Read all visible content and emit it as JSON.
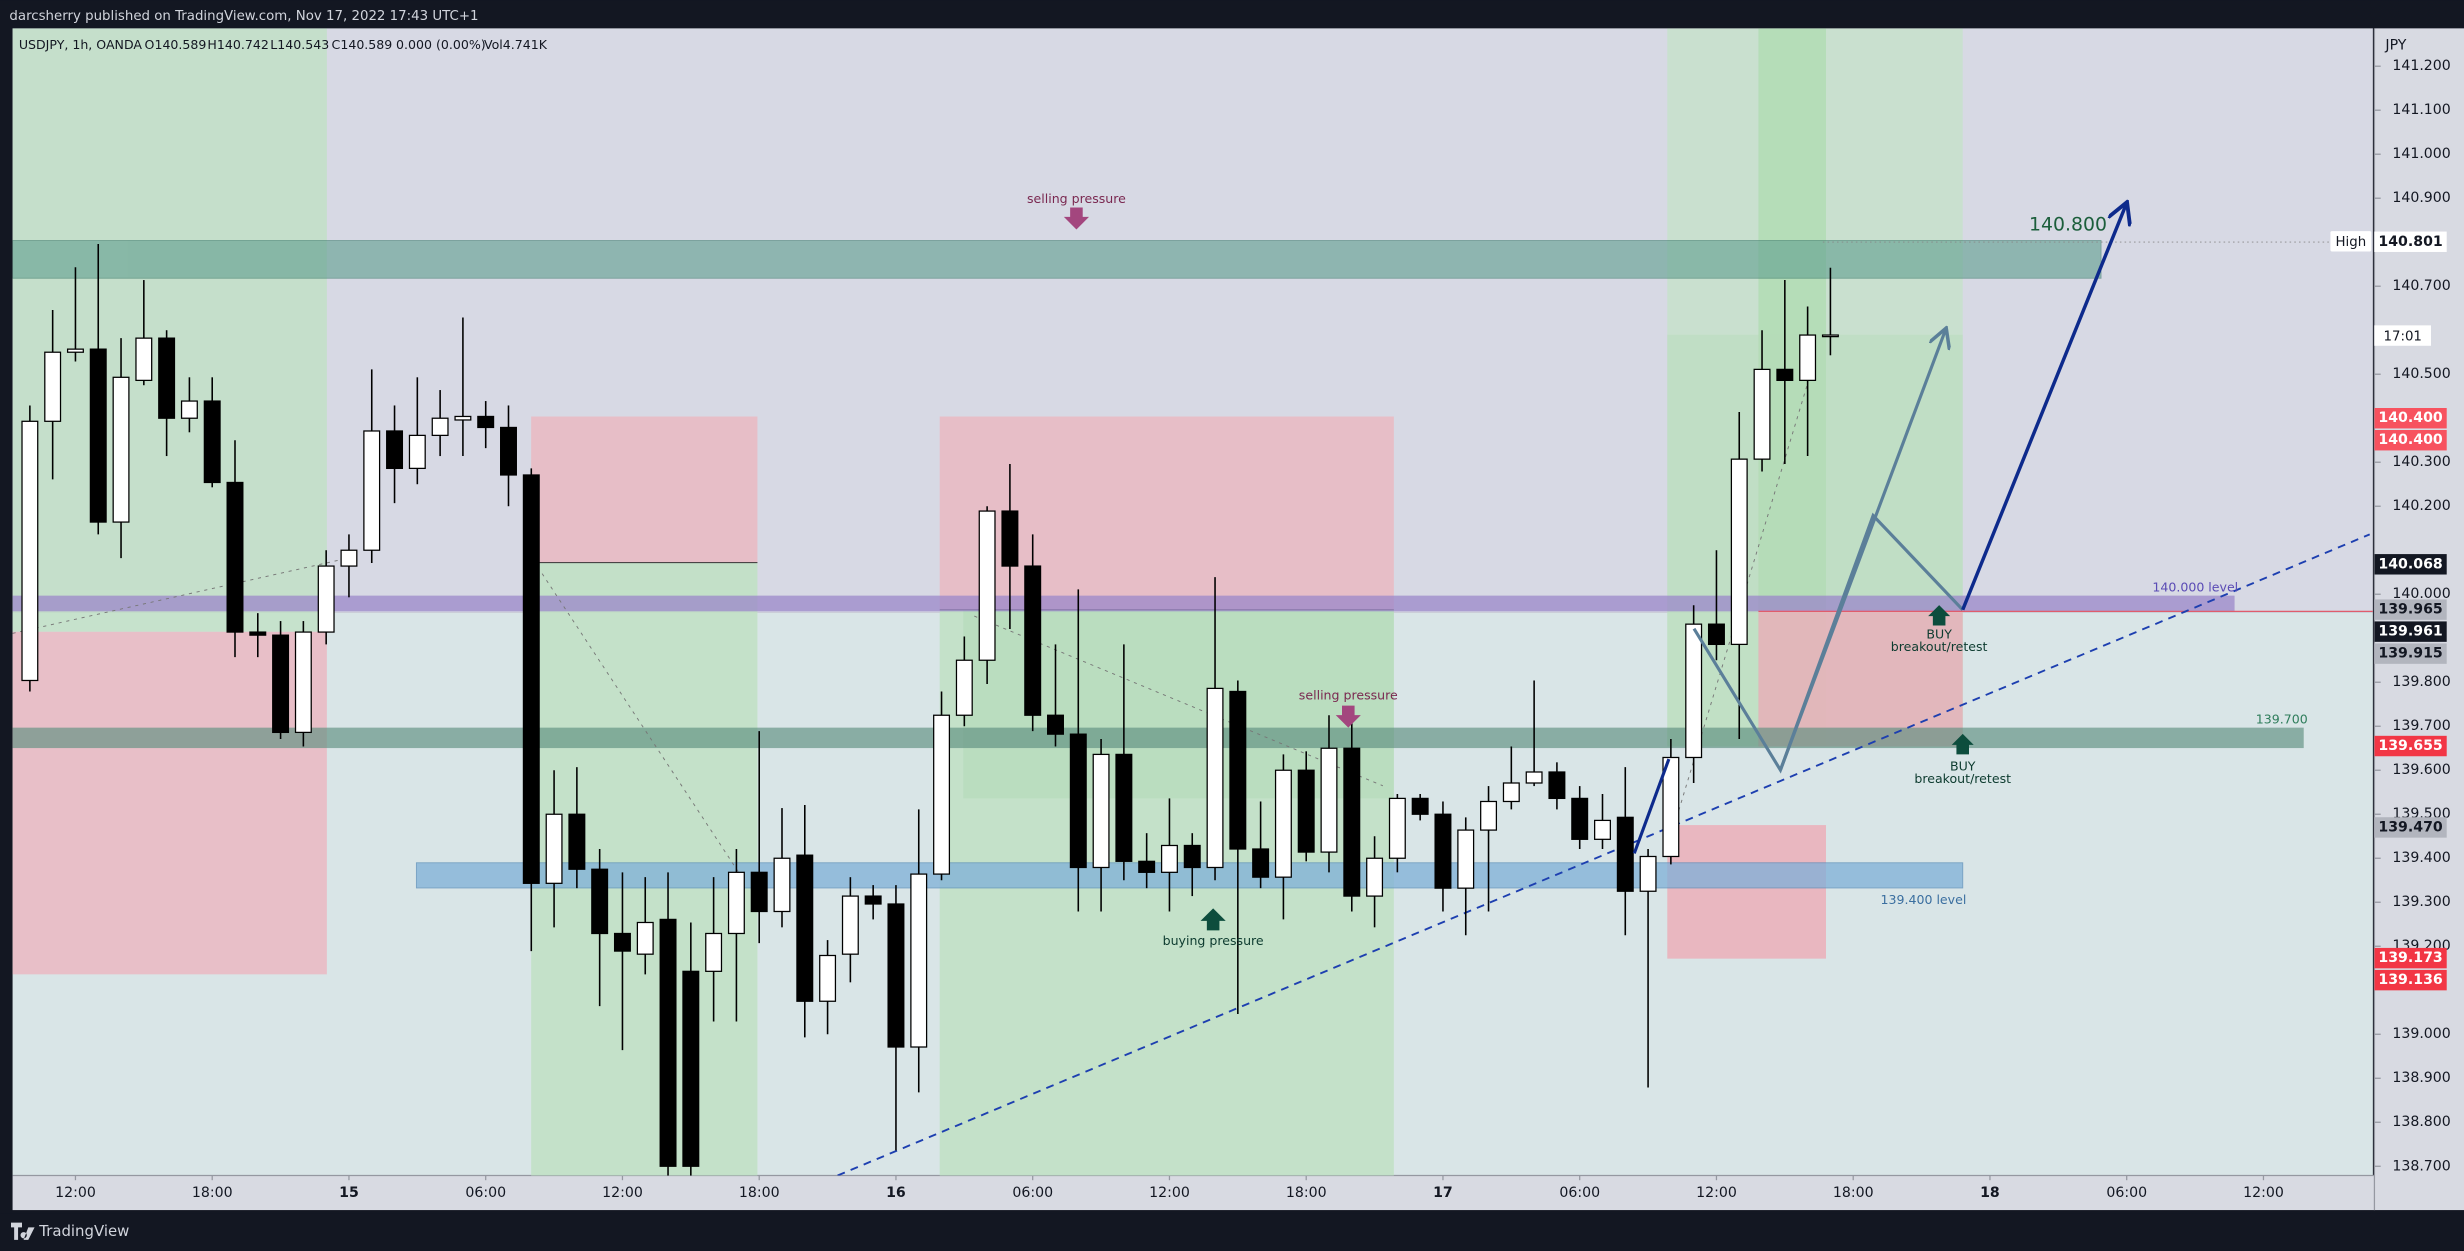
{
  "header": {
    "publisher": "darcsherry published on TradingView.com, Nov 17, 2022 17:43 UTC+1",
    "symbol": "USDJPY, 1h, OANDA",
    "ohlc": [
      "O140.589",
      "H140.742",
      "L140.543",
      "C140.589",
      "0.000 (0.00%)",
      "Vol4.741K"
    ]
  },
  "footer": "TradingView",
  "chart_data": {
    "type": "candlestick",
    "currency": "JPY",
    "up_color": "#ffffff",
    "down_color": "#000000",
    "x": [
      10,
      11,
      12,
      13,
      14,
      15,
      16,
      17,
      18,
      19,
      20,
      21,
      22,
      23,
      24,
      25,
      26,
      27,
      28,
      29,
      30,
      31,
      32,
      33,
      34,
      35,
      36,
      37,
      38,
      39,
      40,
      41,
      42,
      43,
      44,
      45,
      46,
      47,
      48,
      49,
      50,
      51,
      52,
      53,
      54,
      55,
      56,
      57,
      58,
      59,
      60,
      61,
      62,
      63,
      64,
      65,
      66,
      67,
      68,
      69,
      70,
      71,
      72,
      73,
      74,
      75,
      76,
      77,
      78,
      79,
      80,
      81,
      82,
      83,
      84,
      85,
      86,
      87,
      88,
      89
    ],
    "open": [
      139.804,
      140.393,
      140.55,
      140.557,
      140.164,
      140.486,
      140.582,
      140.4,
      140.439,
      140.254,
      139.914,
      139.907,
      139.686,
      139.914,
      140.064,
      140.1,
      140.371,
      140.286,
      140.361,
      140.396,
      140.404,
      140.379,
      140.271,
      139.343,
      139.5,
      139.375,
      139.229,
      139.182,
      139.261,
      139.143,
      139.143,
      139.229,
      139.368,
      139.279,
      139.407,
      139.075,
      139.182,
      139.314,
      139.296,
      138.971,
      139.364,
      139.725,
      139.85,
      140.189,
      140.064,
      139.725,
      139.682,
      139.379,
      139.636,
      139.393,
      139.368,
      139.429,
      139.379,
      139.779,
      139.421,
      139.357,
      139.6,
      139.414,
      139.65,
      139.314,
      139.4,
      139.536,
      139.5,
      139.332,
      139.464,
      139.529,
      139.571,
      139.596,
      139.536,
      139.443,
      139.493,
      139.325,
      139.404,
      139.629,
      139.932,
      139.886,
      140.307,
      140.511,
      140.486,
      140.589
    ],
    "high": [
      140.429,
      140.646,
      140.743,
      140.796,
      140.582,
      140.714,
      140.6,
      140.493,
      140.493,
      140.35,
      139.957,
      139.939,
      139.939,
      140.1,
      140.136,
      140.511,
      140.429,
      140.493,
      140.464,
      140.629,
      140.439,
      140.429,
      140.286,
      139.6,
      139.607,
      139.421,
      139.368,
      139.357,
      139.368,
      139.254,
      139.357,
      139.421,
      139.689,
      139.514,
      139.521,
      139.214,
      139.357,
      139.339,
      139.339,
      139.511,
      139.779,
      139.904,
      140.2,
      140.296,
      140.136,
      139.886,
      140.011,
      139.671,
      139.886,
      139.457,
      139.536,
      139.457,
      140.039,
      139.804,
      139.529,
      139.636,
      139.643,
      139.725,
      139.725,
      139.45,
      139.546,
      139.546,
      139.529,
      139.493,
      139.564,
      139.654,
      139.804,
      139.618,
      139.564,
      139.546,
      139.607,
      139.421,
      139.671,
      139.975,
      140.1,
      140.414,
      140.6,
      140.714,
      140.654,
      140.742
    ],
    "low": [
      139.779,
      140.261,
      140.529,
      140.136,
      140.082,
      140.475,
      140.314,
      140.368,
      140.243,
      139.857,
      139.857,
      139.671,
      139.654,
      139.886,
      139.993,
      140.071,
      140.207,
      140.25,
      140.314,
      140.314,
      140.332,
      140.2,
      139.189,
      139.243,
      139.332,
      139.064,
      138.964,
      139.136,
      138.679,
      138.679,
      139.029,
      139.029,
      139.207,
      139.243,
      138.993,
      139.0,
      139.118,
      139.261,
      138.736,
      138.868,
      139.35,
      139.7,
      139.796,
      139.921,
      139.689,
      139.654,
      139.279,
      139.279,
      139.35,
      139.332,
      139.279,
      139.314,
      139.35,
      139.046,
      139.332,
      139.261,
      139.393,
      139.368,
      139.279,
      139.243,
      139.368,
      139.486,
      139.279,
      139.225,
      139.279,
      139.511,
      139.564,
      139.511,
      139.421,
      139.421,
      139.225,
      138.879,
      139.386,
      139.571,
      139.85,
      139.671,
      140.279,
      140.296,
      140.314,
      140.543
    ],
    "close": [
      140.393,
      140.55,
      140.557,
      140.164,
      140.493,
      140.582,
      140.4,
      140.439,
      140.254,
      139.914,
      139.907,
      139.686,
      139.914,
      140.064,
      140.1,
      140.371,
      140.286,
      140.361,
      140.4,
      140.404,
      140.379,
      140.271,
      139.343,
      139.5,
      139.375,
      139.229,
      139.189,
      139.254,
      138.7,
      138.7,
      139.229,
      139.368,
      139.279,
      139.4,
      139.075,
      139.179,
      139.314,
      139.296,
      138.971,
      139.364,
      139.725,
      139.85,
      140.189,
      140.064,
      139.725,
      139.682,
      139.379,
      139.636,
      139.393,
      139.368,
      139.429,
      139.379,
      139.786,
      139.421,
      139.357,
      139.6,
      139.414,
      139.65,
      139.314,
      139.4,
      139.536,
      139.5,
      139.332,
      139.464,
      139.529,
      139.571,
      139.596,
      139.536,
      139.443,
      139.486,
      139.325,
      139.404,
      139.629,
      139.932,
      139.886,
      140.307,
      140.511,
      140.486,
      140.589,
      140.589
    ],
    "xlim": [
      9.241,
      112.8
    ],
    "xticks": [
      {
        "value": 12,
        "label": "12:00"
      },
      {
        "value": 18,
        "label": "18:00"
      },
      {
        "value": 24,
        "label": "15"
      },
      {
        "value": 30,
        "label": "06:00"
      },
      {
        "value": 36,
        "label": "12:00"
      },
      {
        "value": 42,
        "label": "18:00"
      },
      {
        "value": 48,
        "label": "16"
      },
      {
        "value": 54,
        "label": "06:00"
      },
      {
        "value": 60,
        "label": "12:00"
      },
      {
        "value": 66,
        "label": "18:00"
      },
      {
        "value": 72,
        "label": "17"
      },
      {
        "value": 78,
        "label": "06:00"
      },
      {
        "value": 84,
        "label": "12:00"
      },
      {
        "value": 90,
        "label": "18:00"
      },
      {
        "value": 96,
        "label": "18"
      },
      {
        "value": 102,
        "label": "06:00"
      },
      {
        "value": 108,
        "label": "12:00"
      }
    ],
    "ylim": [
      138.679,
      141.286
    ],
    "yticks": [
      {
        "value": 141.2,
        "label": "141.200"
      },
      {
        "value": 141.1,
        "label": "141.100"
      },
      {
        "value": 141.0,
        "label": "141.000"
      },
      {
        "value": 140.9,
        "label": "140.900"
      },
      {
        "value": 140.7,
        "label": "140.700"
      },
      {
        "value": 140.5,
        "label": "140.500"
      },
      {
        "value": 140.3,
        "label": "140.300"
      },
      {
        "value": 140.2,
        "label": "140.200"
      },
      {
        "value": 140.0,
        "label": "140.000"
      },
      {
        "value": 139.8,
        "label": "139.800"
      },
      {
        "value": 139.7,
        "label": "139.700"
      },
      {
        "value": 139.6,
        "label": "139.600"
      },
      {
        "value": 139.5,
        "label": "139.500"
      },
      {
        "value": 139.4,
        "label": "139.400"
      },
      {
        "value": 139.3,
        "label": "139.300"
      },
      {
        "value": 139.2,
        "label": "139.200"
      },
      {
        "value": 139.0,
        "label": "139.000"
      },
      {
        "value": 138.9,
        "label": "138.900"
      },
      {
        "value": 138.8,
        "label": "138.800"
      },
      {
        "value": 138.7,
        "label": "138.700"
      }
    ],
    "price_tags": [
      {
        "value": 140.801,
        "label": "140.801",
        "color": "#ffffff",
        "text_color": "#131722"
      },
      {
        "value": 140.4,
        "label": "140.400",
        "color": "#f7525f",
        "text_color": "#ffffff"
      },
      {
        "value": 140.4,
        "label": "140.400",
        "color": "#f7525f",
        "text_color": "#ffffff"
      },
      {
        "value": 140.068,
        "label": "140.068",
        "color": "#131722",
        "text_color": "#ffffff"
      },
      {
        "value": 139.965,
        "label": "139.965",
        "color": "#b2b5be",
        "text_color": "#131722"
      },
      {
        "value": 139.961,
        "label": "139.961",
        "color": "#131722",
        "text_color": "#ffffff"
      },
      {
        "value": 139.915,
        "label": "139.915",
        "color": "#b2b5be",
        "text_color": "#131722"
      },
      {
        "value": 139.655,
        "label": "139.655",
        "color": "#f23645",
        "text_color": "#ffffff"
      },
      {
        "value": 139.47,
        "label": "139.470",
        "color": "#b2b5be",
        "text_color": "#131722"
      },
      {
        "value": 139.173,
        "label": "139.173",
        "color": "#f23645",
        "text_color": "#ffffff"
      },
      {
        "value": 139.136,
        "label": "139.136",
        "color": "#f23645",
        "text_color": "#ffffff"
      }
    ],
    "high_label": "High",
    "countdown": "17:01",
    "annotations": {
      "selling_1": "selling pressure",
      "selling_2": "selling pressure",
      "buying": "buying pressure",
      "buy_1": "BUY",
      "buy_1_note": "breakout/retest",
      "buy_2": "BUY",
      "buy_2_note": "breakout/retest",
      "level_140": "140.000 level",
      "level_1397": "139.700",
      "level_1394": "139.400 level",
      "target": "140.800"
    }
  }
}
